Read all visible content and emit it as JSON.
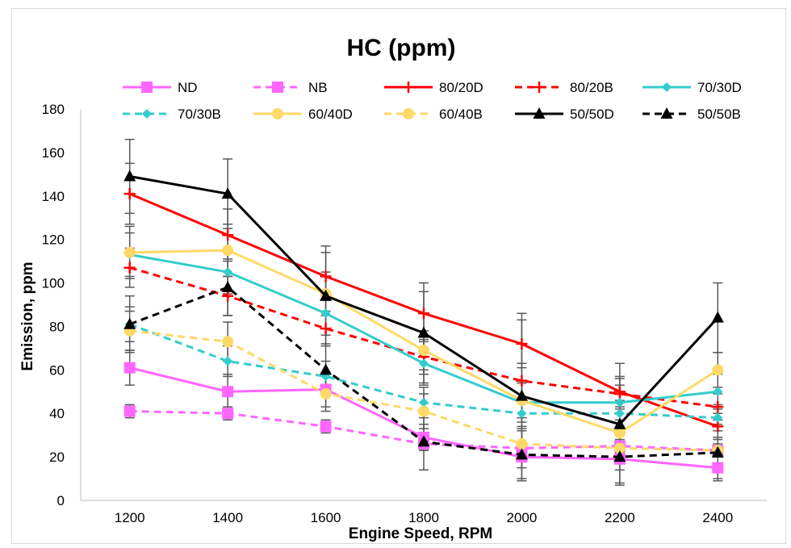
{
  "chart_data": {
    "type": "line",
    "title": "HC (ppm)",
    "xlabel": "Engine Speed, RPM",
    "ylabel": "Emission, ppm",
    "categories": [
      "1200",
      "1400",
      "1600",
      "1800",
      "2000",
      "2200",
      "2400"
    ],
    "ylim": [
      0,
      180
    ],
    "yticks": [
      "0",
      "20",
      "40",
      "60",
      "80",
      "100",
      "120",
      "140",
      "160",
      "180"
    ],
    "grid": false,
    "legend_position": "top",
    "error_bars": true,
    "series": [
      {
        "name": "ND",
        "color": "#ff66ff",
        "dash": false,
        "marker": "square",
        "values": [
          61,
          50,
          51,
          29,
          20,
          19,
          15
        ],
        "errors": [
          8,
          8,
          8,
          6,
          5,
          5,
          5
        ]
      },
      {
        "name": "NB",
        "color": "#ff66ff",
        "dash": true,
        "marker": "square",
        "values": [
          41,
          40,
          34,
          26,
          24,
          25,
          23
        ],
        "errors": [
          3,
          3,
          3,
          3,
          3,
          3,
          3
        ]
      },
      {
        "name": "80/20D",
        "color": "#ff0000",
        "dash": false,
        "marker": "plus",
        "values": [
          141,
          122,
          103,
          86,
          72,
          50,
          34
        ],
        "errors": [
          14,
          12,
          11,
          10,
          11,
          7,
          6
        ]
      },
      {
        "name": "80/20B",
        "color": "#ff0000",
        "dash": true,
        "marker": "plus",
        "values": [
          107,
          94,
          79,
          66,
          55,
          49,
          43
        ],
        "errors": [
          9,
          9,
          8,
          8,
          8,
          7,
          6
        ]
      },
      {
        "name": "70/30D",
        "color": "#33cccc",
        "dash": false,
        "marker": "diamond",
        "values": [
          113,
          105,
          86,
          63,
          45,
          45,
          50
        ],
        "errors": [
          10,
          10,
          10,
          10,
          9,
          8,
          8
        ]
      },
      {
        "name": "70/30B",
        "color": "#33cccc",
        "dash": true,
        "marker": "diamond",
        "values": [
          81,
          64,
          57,
          45,
          40,
          40,
          38
        ],
        "errors": [
          8,
          7,
          7,
          7,
          6,
          6,
          6
        ]
      },
      {
        "name": "60/40D",
        "color": "#ffd966",
        "dash": false,
        "marker": "circle",
        "values": [
          114,
          115,
          95,
          69,
          46,
          31,
          60
        ],
        "errors": [
          12,
          12,
          10,
          9,
          8,
          6,
          8
        ]
      },
      {
        "name": "60/40B",
        "color": "#ffd966",
        "dash": true,
        "marker": "circle",
        "values": [
          78,
          73,
          49,
          41,
          26,
          24,
          23
        ],
        "errors": [
          9,
          9,
          8,
          8,
          6,
          6,
          6
        ]
      },
      {
        "name": "50/50D",
        "color": "#000000",
        "dash": false,
        "marker": "triangle",
        "values": [
          149,
          141,
          94,
          77,
          48,
          35,
          84
        ],
        "errors": [
          17,
          16,
          23,
          23,
          38,
          28,
          16
        ]
      },
      {
        "name": "50/50B",
        "color": "#000000",
        "dash": true,
        "marker": "triangle",
        "values": [
          81,
          98,
          60,
          27,
          21,
          20,
          22
        ],
        "errors": [
          13,
          13,
          12,
          13,
          12,
          12,
          13
        ]
      }
    ]
  }
}
